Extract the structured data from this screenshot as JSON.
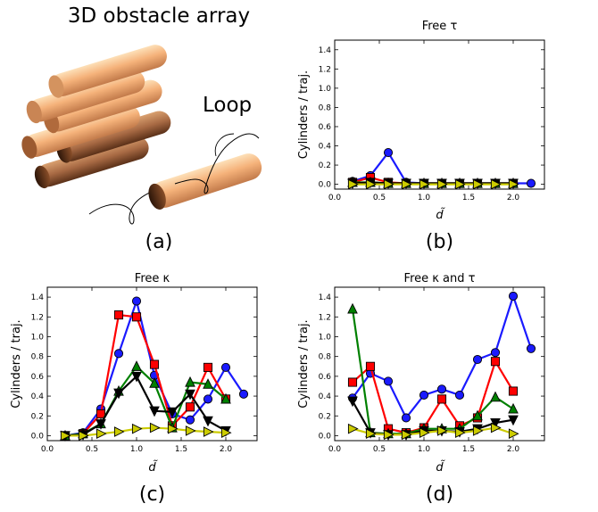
{
  "figure": {
    "illustration_title": "3D obstacle array",
    "loop_label": "Loop",
    "panel_a_label": "(a)"
  },
  "chart_data": [
    {
      "type": "line",
      "panel_label": "(b)",
      "title": "Free τ",
      "xlabel": "d̃",
      "ylabel": "Cylinders / traj.",
      "xlim": [
        0.0,
        2.35
      ],
      "ylim": [
        -0.05,
        1.5
      ],
      "xticks": [
        "0.0",
        "0.5",
        "1.0",
        "1.5",
        "2.0"
      ],
      "yticks": [
        "0.0",
        "0.2",
        "0.4",
        "0.6",
        "0.8",
        "1.0",
        "1.2",
        "1.4"
      ],
      "grid": false,
      "series": [
        {
          "color": "#1a1aff",
          "marker": "circle",
          "x": [
            0.2,
            0.4,
            0.6,
            0.8,
            1.0,
            1.2,
            1.4,
            1.6,
            1.8,
            2.0,
            2.2
          ],
          "y": [
            0.03,
            0.09,
            0.33,
            0.02,
            0.01,
            0.01,
            0.01,
            0.01,
            0.01,
            0.01,
            0.01
          ]
        },
        {
          "color": "#ff0000",
          "marker": "square",
          "x": [
            0.2,
            0.4,
            0.6,
            0.8,
            1.0,
            1.2,
            1.4,
            1.6,
            1.8,
            2.0
          ],
          "y": [
            0.02,
            0.07,
            0.02,
            0.01,
            0.01,
            0.01,
            0.01,
            0.01,
            0.01,
            0.01
          ]
        },
        {
          "color": "#008000",
          "marker": "triangle-up",
          "x": [
            0.2,
            0.4,
            0.6,
            0.8,
            1.0,
            1.2,
            1.4,
            1.6,
            1.8,
            2.0
          ],
          "y": [
            0.02,
            0.02,
            0.01,
            0.01,
            0.01,
            0.01,
            0.01,
            0.01,
            0.01,
            0.01
          ]
        },
        {
          "color": "#000000",
          "marker": "triangle-down",
          "x": [
            0.2,
            0.4,
            0.6,
            0.8,
            1.0,
            1.2,
            1.4,
            1.6,
            1.8,
            2.0
          ],
          "y": [
            0.01,
            0.02,
            0.01,
            0.01,
            0.01,
            0.01,
            0.01,
            0.01,
            0.01,
            0.01
          ]
        },
        {
          "color": "#cccc00",
          "marker": "triangle-right",
          "x": [
            0.2,
            0.4,
            0.6,
            0.8,
            1.0,
            1.2,
            1.4,
            1.6,
            1.8,
            2.0
          ],
          "y": [
            0.0,
            0.0,
            0.0,
            0.0,
            0.0,
            0.0,
            0.0,
            0.0,
            0.0,
            0.0
          ]
        }
      ]
    },
    {
      "type": "line",
      "panel_label": "(c)",
      "title": "Free κ",
      "xlabel": "d̃",
      "ylabel": "Cylinders / traj.",
      "xlim": [
        0.0,
        2.35
      ],
      "ylim": [
        -0.05,
        1.5
      ],
      "xticks": [
        "0.0",
        "0.5",
        "1.0",
        "1.5",
        "2.0"
      ],
      "yticks": [
        "0.0",
        "0.2",
        "0.4",
        "0.6",
        "0.8",
        "1.0",
        "1.2",
        "1.4"
      ],
      "grid": false,
      "series": [
        {
          "color": "#1a1aff",
          "marker": "circle",
          "x": [
            0.2,
            0.4,
            0.6,
            0.8,
            1.0,
            1.2,
            1.4,
            1.6,
            1.8,
            2.0,
            2.2
          ],
          "y": [
            0.0,
            0.03,
            0.27,
            0.83,
            1.36,
            0.61,
            0.22,
            0.16,
            0.37,
            0.69,
            0.42
          ]
        },
        {
          "color": "#ff0000",
          "marker": "square",
          "x": [
            0.2,
            0.4,
            0.6,
            0.8,
            1.0,
            1.2,
            1.4,
            1.6,
            1.8,
            2.0
          ],
          "y": [
            0.0,
            0.02,
            0.22,
            1.22,
            1.2,
            0.72,
            0.1,
            0.29,
            0.69,
            0.37
          ]
        },
        {
          "color": "#008000",
          "marker": "triangle-up",
          "x": [
            0.2,
            0.4,
            0.6,
            0.8,
            1.0,
            1.2,
            1.4,
            1.6,
            1.8,
            2.0
          ],
          "y": [
            0.0,
            0.02,
            0.12,
            0.45,
            0.7,
            0.53,
            0.08,
            0.54,
            0.52,
            0.37
          ]
        },
        {
          "color": "#000000",
          "marker": "triangle-down",
          "x": [
            0.2,
            0.4,
            0.6,
            0.8,
            1.0,
            1.2,
            1.4,
            1.6,
            1.8,
            2.0
          ],
          "y": [
            0.0,
            0.01,
            0.12,
            0.43,
            0.6,
            0.25,
            0.24,
            0.42,
            0.15,
            0.05
          ]
        },
        {
          "color": "#cccc00",
          "marker": "triangle-right",
          "x": [
            0.2,
            0.4,
            0.6,
            0.8,
            1.0,
            1.2,
            1.4,
            1.6,
            1.8,
            2.0
          ],
          "y": [
            0.0,
            0.0,
            0.02,
            0.04,
            0.07,
            0.08,
            0.07,
            0.05,
            0.04,
            0.03
          ]
        }
      ]
    },
    {
      "type": "line",
      "panel_label": "(d)",
      "title": "Free κ and τ",
      "xlabel": "d̃",
      "ylabel": "Cylinders / traj.",
      "xlim": [
        0.0,
        2.35
      ],
      "ylim": [
        -0.05,
        1.5
      ],
      "xticks": [
        "0.0",
        "0.5",
        "1.0",
        "1.5",
        "2.0"
      ],
      "yticks": [
        "0.0",
        "0.2",
        "0.4",
        "0.6",
        "0.8",
        "1.0",
        "1.2",
        "1.4"
      ],
      "grid": false,
      "series": [
        {
          "color": "#1a1aff",
          "marker": "circle",
          "x": [
            0.2,
            0.4,
            0.6,
            0.8,
            1.0,
            1.2,
            1.4,
            1.6,
            1.8,
            2.0,
            2.2
          ],
          "y": [
            0.38,
            0.63,
            0.55,
            0.18,
            0.41,
            0.47,
            0.41,
            0.77,
            0.84,
            1.41,
            0.88
          ]
        },
        {
          "color": "#ff0000",
          "marker": "square",
          "x": [
            0.2,
            0.4,
            0.6,
            0.8,
            1.0,
            1.2,
            1.4,
            1.6,
            1.8,
            2.0
          ],
          "y": [
            0.54,
            0.7,
            0.07,
            0.03,
            0.08,
            0.37,
            0.1,
            0.18,
            0.75,
            0.45
          ]
        },
        {
          "color": "#008000",
          "marker": "triangle-up",
          "x": [
            0.2,
            0.4,
            0.6,
            0.8,
            1.0,
            1.2,
            1.4,
            1.6,
            1.8,
            2.0
          ],
          "y": [
            1.28,
            0.03,
            0.02,
            0.02,
            0.07,
            0.07,
            0.07,
            0.2,
            0.39,
            0.27
          ]
        },
        {
          "color": "#000000",
          "marker": "triangle-down",
          "x": [
            0.2,
            0.4,
            0.6,
            0.8,
            1.0,
            1.2,
            1.4,
            1.6,
            1.8,
            2.0
          ],
          "y": [
            0.35,
            0.03,
            0.01,
            0.01,
            0.05,
            0.05,
            0.04,
            0.07,
            0.13,
            0.16
          ]
        },
        {
          "color": "#cccc00",
          "marker": "triangle-right",
          "x": [
            0.2,
            0.4,
            0.6,
            0.8,
            1.0,
            1.2,
            1.4,
            1.6,
            1.8,
            2.0
          ],
          "y": [
            0.07,
            0.02,
            0.01,
            0.01,
            0.03,
            0.05,
            0.03,
            0.05,
            0.08,
            0.02
          ]
        }
      ]
    }
  ]
}
